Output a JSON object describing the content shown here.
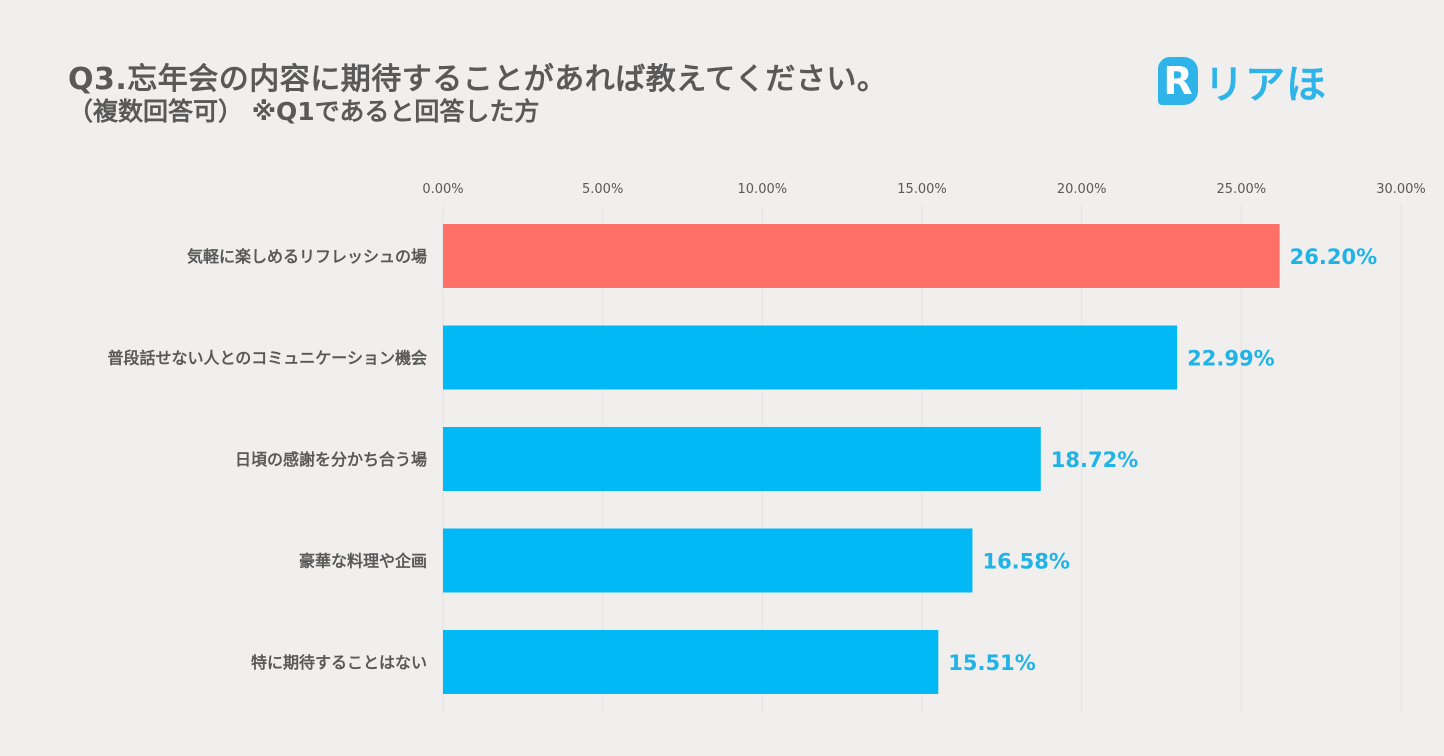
{
  "title": {
    "line1": "Q3.忘年会の内容に期待することがあれば教えてください。",
    "line2": "（複数回答可） ※Q1であると回答した方"
  },
  "logo": {
    "mark": "R",
    "text": "リアほ",
    "icon": "speech-bubble-r-logo-icon"
  },
  "colors": {
    "highlight": "#ff7168",
    "bar": "#00b9f5",
    "label": "#1fb3e6",
    "text": "#595959"
  },
  "chart_data": {
    "type": "bar",
    "orientation": "horizontal",
    "title": "Q3.忘年会の内容に期待することがあれば教えてください。",
    "subtitle": "（複数回答可） ※Q1であると回答した方",
    "categories": [
      "気軽に楽しめるリフレッシュの場",
      "普段話せない人とのコミュニケーション機会",
      "日頃の感謝を分かち合う場",
      "豪華な料理や企画",
      "特に期待することはない"
    ],
    "values": [
      26.2,
      22.99,
      18.72,
      16.58,
      15.51
    ],
    "data_labels": [
      "26.20%",
      "22.99%",
      "18.72%",
      "16.58%",
      "15.51%"
    ],
    "highlight_index": 0,
    "xlim": [
      0,
      30
    ],
    "ticks": [
      0,
      5,
      10,
      15,
      20,
      25,
      30
    ],
    "tick_labels": [
      "0.00%",
      "5.00%",
      "10.00%",
      "15.00%",
      "20.00%",
      "25.00%",
      "30.00%"
    ],
    "axis_position": "top",
    "grid": true,
    "legend": "none",
    "xlabel": "",
    "ylabel": ""
  }
}
